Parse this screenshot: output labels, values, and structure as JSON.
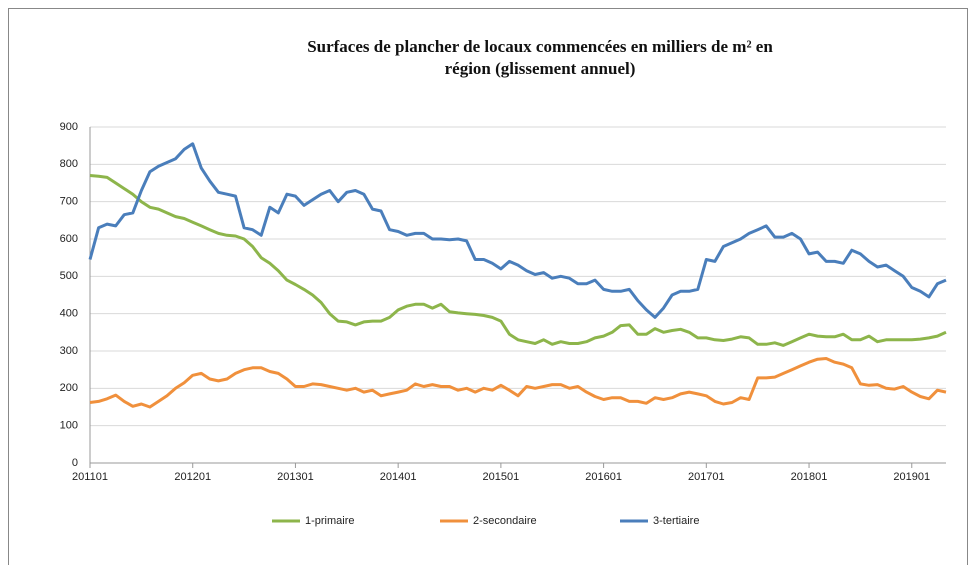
{
  "chart_data": {
    "type": "line",
    "title": "Surfaces de plancher de locaux commencées en milliers de m² en région (glissement annuel)",
    "categories": [
      "201101",
      null,
      null,
      null,
      null,
      null,
      null,
      null,
      null,
      null,
      null,
      null,
      "201201",
      null,
      null,
      null,
      null,
      null,
      null,
      null,
      null,
      null,
      null,
      null,
      "201301",
      null,
      null,
      null,
      null,
      null,
      null,
      null,
      null,
      null,
      null,
      null,
      "201401",
      null,
      null,
      null,
      null,
      null,
      null,
      null,
      null,
      null,
      null,
      null,
      "201501",
      null,
      null,
      null,
      null,
      null,
      null,
      null,
      null,
      null,
      null,
      null,
      "201601",
      null,
      null,
      null,
      null,
      null,
      null,
      null,
      null,
      null,
      null,
      null,
      "201701",
      null,
      null,
      null,
      null,
      null,
      null,
      null,
      null,
      null,
      null,
      null,
      "201801",
      null,
      null,
      null,
      null,
      null,
      null,
      null,
      null,
      null,
      null,
      null,
      "201901",
      null,
      null,
      null,
      null
    ],
    "series": [
      {
        "name": "1-primaire",
        "color": "#8db54b",
        "values": [
          770,
          768,
          765,
          750,
          735,
          720,
          700,
          685,
          680,
          670,
          660,
          655,
          645,
          635,
          625,
          615,
          610,
          608,
          600,
          580,
          550,
          535,
          515,
          490,
          478,
          465,
          450,
          430,
          400,
          380,
          378,
          370,
          378,
          380,
          380,
          390,
          410,
          420,
          425,
          425,
          415,
          425,
          405,
          402,
          400,
          398,
          395,
          390,
          380,
          345,
          330,
          325,
          320,
          330,
          318,
          325,
          320,
          320,
          325,
          335,
          340,
          350,
          368,
          370,
          345,
          345,
          360,
          350,
          355,
          358,
          350,
          335,
          335,
          330,
          328,
          332,
          338,
          335,
          318,
          318,
          322,
          315,
          325,
          335,
          345,
          340,
          338,
          338,
          345,
          330,
          330,
          340,
          325,
          330,
          330,
          330,
          330,
          332,
          335,
          340,
          350
        ]
      },
      {
        "name": "2-secondaire",
        "color": "#f0903c",
        "values": [
          162,
          165,
          172,
          182,
          165,
          152,
          158,
          150,
          165,
          180,
          200,
          215,
          235,
          240,
          225,
          220,
          225,
          240,
          250,
          255,
          255,
          245,
          240,
          225,
          205,
          205,
          212,
          210,
          205,
          200,
          195,
          200,
          190,
          195,
          180,
          185,
          190,
          195,
          212,
          205,
          210,
          205,
          205,
          195,
          200,
          190,
          200,
          195,
          208,
          195,
          180,
          205,
          200,
          205,
          210,
          210,
          200,
          205,
          190,
          178,
          170,
          175,
          175,
          165,
          165,
          160,
          175,
          170,
          175,
          185,
          190,
          185,
          180,
          165,
          158,
          162,
          175,
          170,
          228,
          228,
          230,
          240,
          250,
          260,
          270,
          278,
          280,
          270,
          265,
          255,
          212,
          208,
          210,
          200,
          198,
          205,
          190,
          178,
          172,
          195,
          190
        ]
      },
      {
        "name": "3-tertiaire",
        "color": "#4a7ebb",
        "values": [
          545,
          630,
          640,
          635,
          665,
          670,
          730,
          780,
          795,
          805,
          815,
          840,
          855,
          790,
          755,
          725,
          720,
          715,
          630,
          625,
          610,
          685,
          670,
          720,
          715,
          690,
          705,
          720,
          730,
          700,
          725,
          730,
          720,
          680,
          675,
          625,
          620,
          610,
          615,
          615,
          600,
          600,
          598,
          600,
          595,
          545,
          545,
          535,
          520,
          540,
          530,
          515,
          505,
          510,
          495,
          500,
          495,
          480,
          480,
          490,
          465,
          460,
          460,
          465,
          435,
          410,
          390,
          415,
          450,
          460,
          460,
          465,
          545,
          540,
          580,
          590,
          600,
          615,
          625,
          635,
          605,
          605,
          615,
          600,
          560,
          565,
          540,
          540,
          535,
          570,
          560,
          540,
          525,
          530,
          515,
          500,
          470,
          460,
          445,
          480,
          490
        ]
      }
    ],
    "ylim": [
      0,
      900
    ],
    "yticks": [
      0,
      100,
      200,
      300,
      400,
      500,
      600,
      700,
      800,
      900
    ],
    "grid": true
  }
}
